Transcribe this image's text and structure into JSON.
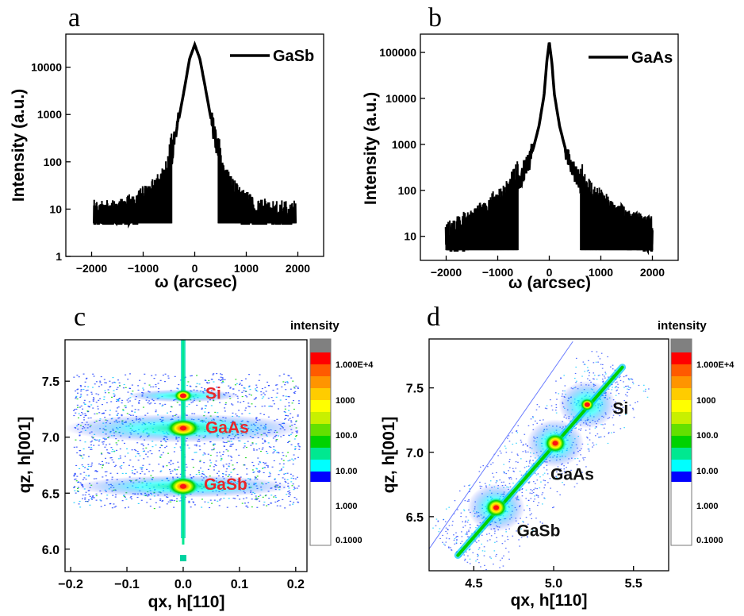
{
  "panels": [
    {
      "id": "a",
      "label": "a"
    },
    {
      "id": "b",
      "label": "b"
    },
    {
      "id": "c",
      "label": "c"
    },
    {
      "id": "d",
      "label": "d"
    }
  ],
  "chart_data": [
    {
      "id": "a",
      "type": "line",
      "panel_label": "a",
      "xlabel": "ω (arcsec)",
      "ylabel": "Intensity (a.u.)",
      "x_scale": "linear",
      "y_scale": "log",
      "xlim": [
        -2500,
        2500
      ],
      "ylim": [
        1,
        50000
      ],
      "xticks": [
        "-2000",
        "-1000",
        "0",
        "1000",
        "2000"
      ],
      "yticks": [
        "1",
        "10",
        "100",
        "1000",
        "10000"
      ],
      "legend_position": "top-right",
      "series": [
        {
          "name": "GaSb",
          "color": "#000000",
          "x": [
            -1950,
            -1550,
            -1400,
            -1200,
            -1000,
            -800,
            -600,
            -500,
            -400,
            -300,
            -200,
            -100,
            0,
            100,
            200,
            300,
            400,
            500,
            600,
            800,
            1000,
            1200,
            1500,
            1950
          ],
          "y": [
            5,
            5,
            6,
            7,
            10,
            14,
            25,
            80,
            250,
            900,
            3500,
            15000,
            30000,
            15000,
            4000,
            1000,
            300,
            90,
            30,
            12,
            8,
            6,
            5,
            5
          ]
        }
      ]
    },
    {
      "id": "b",
      "type": "line",
      "panel_label": "b",
      "xlabel": "ω (arcsec)",
      "ylabel": "Intensity (a.u.)",
      "x_scale": "linear",
      "y_scale": "log",
      "xlim": [
        -2500,
        2500
      ],
      "ylim": [
        3,
        250000
      ],
      "xticks": [
        "-2000",
        "-1000",
        "0",
        "1000",
        "2000"
      ],
      "yticks": [
        "10",
        "100",
        "1000",
        "10000",
        "100000"
      ],
      "legend_position": "top-right",
      "series": [
        {
          "name": "GaAs",
          "color": "#000000",
          "x": [
            -2000,
            -1800,
            -1500,
            -1200,
            -1000,
            -800,
            -600,
            -400,
            -300,
            -200,
            -100,
            -50,
            0,
            50,
            100,
            200,
            300,
            400,
            600,
            800,
            1000,
            1200,
            1500,
            1800,
            2000
          ],
          "y": [
            8,
            10,
            14,
            22,
            40,
            60,
            150,
            400,
            900,
            2500,
            12000,
            60000,
            170000,
            60000,
            12000,
            2500,
            900,
            400,
            150,
            60,
            35,
            22,
            14,
            10,
            9
          ]
        }
      ]
    },
    {
      "id": "c",
      "type": "heatmap",
      "panel_label": "c",
      "xlabel": "qx, h[110]",
      "ylabel": "qz, h[001]",
      "xlim": [
        -0.21,
        0.22
      ],
      "ylim": [
        5.8,
        7.87
      ],
      "xticks": [
        "-0.2",
        "-0.1",
        "0.0",
        "0.1",
        "0.2"
      ],
      "yticks": [
        "6.0",
        "6.5",
        "7.0",
        "7.5"
      ],
      "peaks": [
        {
          "label": "Si",
          "qx": 0.0,
          "qz": 7.37,
          "label_color": "#e8262a"
        },
        {
          "label": "GaAs",
          "qx": 0.0,
          "qz": 7.08,
          "label_color": "#e8262a"
        },
        {
          "label": "GaSb",
          "qx": 0.0,
          "qz": 6.56,
          "label_color": "#e8262a"
        }
      ],
      "colorbar": {
        "title": "intensity",
        "ticks": [
          "1.000E+4",
          "1000",
          "100.0",
          "10.00",
          "1.000",
          "0.1000"
        ]
      }
    },
    {
      "id": "d",
      "type": "heatmap",
      "panel_label": "d",
      "xlabel": "qx, h[110]",
      "ylabel": "qz, h[001]",
      "xlim": [
        4.22,
        5.72
      ],
      "ylim": [
        6.08,
        7.88
      ],
      "xticks": [
        "4.5",
        "5.0",
        "5.5"
      ],
      "yticks": [
        "6.5",
        "7.0",
        "7.5"
      ],
      "peaks": [
        {
          "label": "Si",
          "qx": 5.21,
          "qz": 7.37,
          "label_color": "#111111"
        },
        {
          "label": "GaAs",
          "qx": 5.01,
          "qz": 7.07,
          "label_color": "#111111"
        },
        {
          "label": "GaSb",
          "qx": 4.64,
          "qz": 6.57,
          "label_color": "#111111"
        }
      ],
      "colorbar": {
        "title": "intensity",
        "ticks": [
          "1.000E+4",
          "1000",
          "100.0",
          "10.00",
          "1.000",
          "0.1000"
        ]
      }
    }
  ],
  "colorbar_colors": [
    "#808080",
    "#ff0000",
    "#ff5a00",
    "#ff9400",
    "#ffcc00",
    "#ffff00",
    "#c8f000",
    "#64e000",
    "#00d200",
    "#00e890",
    "#00ffff",
    "#0000ff",
    "#ffffff"
  ]
}
